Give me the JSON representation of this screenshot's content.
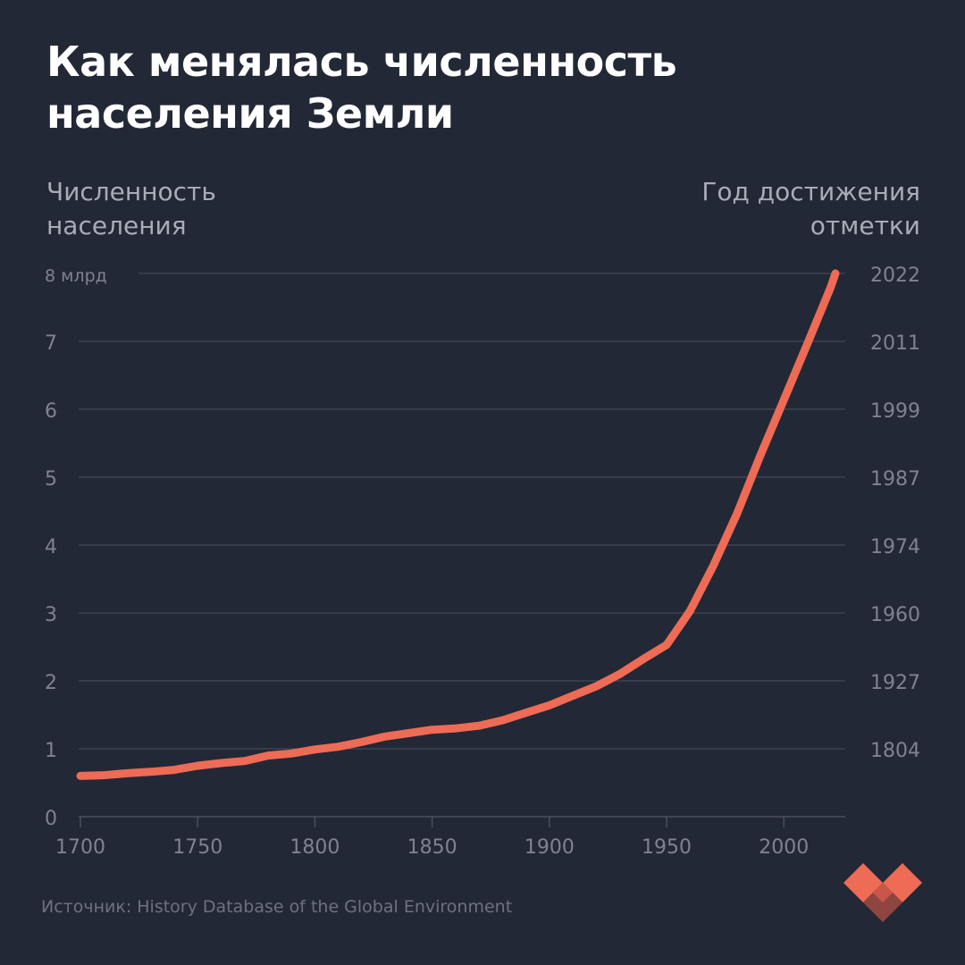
{
  "title_line1": "Как менялась численность",
  "title_line2": "населения Земли",
  "left_axis_title_line1": "Численность",
  "left_axis_title_line2": "населения",
  "right_axis_title_line1": "Год достижения",
  "right_axis_title_line2": "отметки",
  "source": "Источник: History Database of the Global Environment",
  "colors": {
    "background": "#232836",
    "line": "#ee6b55",
    "grid": "#4a4f5e",
    "tick_text": "#80838f",
    "logo_light": "#ee6b55",
    "logo_mid": "#c8574a",
    "logo_dark": "#8f4540"
  },
  "chart_data": {
    "type": "line",
    "title": "Как менялась численность населения Земли",
    "ylabel": "Численность населения",
    "y2label": "Год достижения отметки",
    "xlim": [
      1700,
      2022
    ],
    "ylim": [
      0,
      8
    ],
    "x_ticks": [
      "1700",
      "1750",
      "1800",
      "1850",
      "1900",
      "1950",
      "2000"
    ],
    "y_ticks": [
      "0",
      "1",
      "2",
      "3",
      "4",
      "5",
      "6",
      "7",
      "8 млрд"
    ],
    "y2_ticks": [
      {
        "y": 1,
        "label": "1804"
      },
      {
        "y": 2,
        "label": "1927"
      },
      {
        "y": 3,
        "label": "1960"
      },
      {
        "y": 4,
        "label": "1974"
      },
      {
        "y": 5,
        "label": "1987"
      },
      {
        "y": 6,
        "label": "1999"
      },
      {
        "y": 7,
        "label": "2011"
      },
      {
        "y": 8,
        "label": "2022"
      }
    ],
    "grid": "horizontal",
    "series": [
      {
        "x": [
          1700,
          1710,
          1720,
          1730,
          1740,
          1750,
          1760,
          1770,
          1780,
          1790,
          1800,
          1810,
          1820,
          1830,
          1840,
          1850,
          1860,
          1870,
          1880,
          1890,
          1900,
          1910,
          1920,
          1930,
          1940,
          1950,
          1960,
          1970,
          1980,
          1990,
          2000,
          2010,
          2020,
          2022
        ],
        "y": [
          0.6,
          0.61,
          0.64,
          0.66,
          0.69,
          0.75,
          0.79,
          0.82,
          0.9,
          0.93,
          0.99,
          1.03,
          1.1,
          1.18,
          1.23,
          1.28,
          1.3,
          1.34,
          1.42,
          1.53,
          1.64,
          1.78,
          1.92,
          2.1,
          2.32,
          2.53,
          3.03,
          3.7,
          4.46,
          5.32,
          6.14,
          6.96,
          7.8,
          8.0
        ]
      }
    ]
  }
}
